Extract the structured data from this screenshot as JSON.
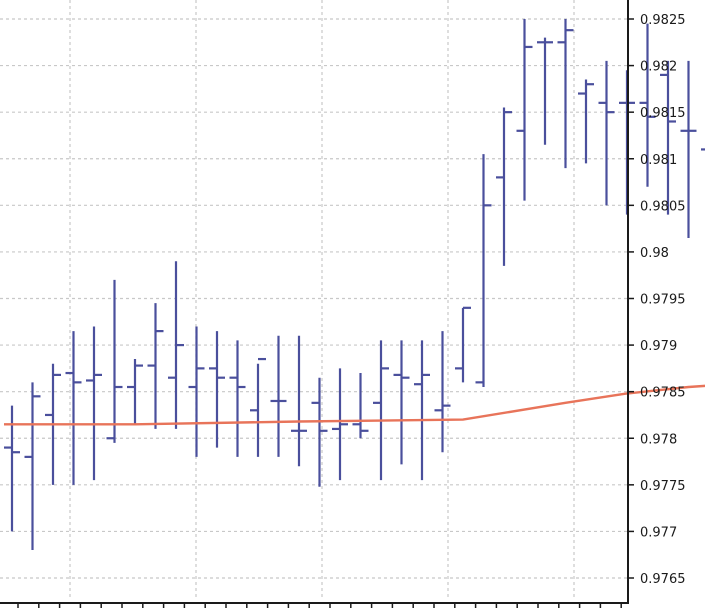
{
  "chart_data": {
    "type": "ohlc",
    "title": "",
    "xlabel": "",
    "ylabel": "",
    "ylim": [
      0.9762,
      0.9827
    ],
    "y_ticks": [
      "0.9825",
      "0.982",
      "0.9815",
      "0.981",
      "0.9805",
      "0.98",
      "0.9795",
      "0.979",
      "0.9785",
      "0.978",
      "0.9775",
      "0.977",
      "0.9765"
    ],
    "y_tick_values": [
      0.9825,
      0.982,
      0.9815,
      0.981,
      0.9805,
      0.98,
      0.9795,
      0.979,
      0.9785,
      0.978,
      0.9775,
      0.977,
      0.9765
    ],
    "grid": true,
    "axis_position": "right",
    "colors": {
      "bars": "#4a4f9c",
      "moving_average": "#e8745a",
      "grid": "#c8c8c8",
      "axis": "#1a1a1a"
    },
    "bars": [
      {
        "high": 0.97835,
        "low": 0.977,
        "open": 0.9779,
        "close": 0.97785
      },
      {
        "high": 0.9786,
        "low": 0.9768,
        "open": 0.9778,
        "close": 0.97845
      },
      {
        "high": 0.9788,
        "low": 0.9775,
        "open": 0.97825,
        "close": 0.97868
      },
      {
        "high": 0.97915,
        "low": 0.9775,
        "open": 0.9787,
        "close": 0.9786
      },
      {
        "high": 0.9792,
        "low": 0.97755,
        "open": 0.97862,
        "close": 0.97868
      },
      {
        "high": 0.9797,
        "low": 0.97795,
        "open": 0.978,
        "close": 0.97855
      },
      {
        "high": 0.97885,
        "low": 0.97815,
        "open": 0.97855,
        "close": 0.97878
      },
      {
        "high": 0.97945,
        "low": 0.9781,
        "open": 0.97878,
        "close": 0.97915
      },
      {
        "high": 0.9799,
        "low": 0.9781,
        "open": 0.97865,
        "close": 0.979
      },
      {
        "high": 0.9792,
        "low": 0.9778,
        "open": 0.97855,
        "close": 0.97875
      },
      {
        "high": 0.97915,
        "low": 0.9779,
        "open": 0.97875,
        "close": 0.97865
      },
      {
        "high": 0.97905,
        "low": 0.9778,
        "open": 0.97865,
        "close": 0.97855
      },
      {
        "high": 0.9788,
        "low": 0.9778,
        "open": 0.9783,
        "close": 0.97885
      },
      {
        "high": 0.9791,
        "low": 0.9778,
        "open": 0.9784,
        "close": 0.9784
      },
      {
        "high": 0.9791,
        "low": 0.9777,
        "open": 0.97808,
        "close": 0.97808
      },
      {
        "high": 0.97865,
        "low": 0.97748,
        "open": 0.97838,
        "close": 0.97808
      },
      {
        "high": 0.97875,
        "low": 0.97755,
        "open": 0.9781,
        "close": 0.97815
      },
      {
        "high": 0.9787,
        "low": 0.978,
        "open": 0.97815,
        "close": 0.97808
      },
      {
        "high": 0.97905,
        "low": 0.97755,
        "open": 0.97838,
        "close": 0.97875
      },
      {
        "high": 0.97905,
        "low": 0.97772,
        "open": 0.97868,
        "close": 0.97865
      },
      {
        "high": 0.97905,
        "low": 0.97755,
        "open": 0.97858,
        "close": 0.97868
      },
      {
        "high": 0.97915,
        "low": 0.97785,
        "open": 0.9783,
        "close": 0.97835
      },
      {
        "high": 0.9794,
        "low": 0.9786,
        "open": 0.97875,
        "close": 0.9794
      },
      {
        "high": 0.98105,
        "low": 0.97855,
        "open": 0.9786,
        "close": 0.9805
      },
      {
        "high": 0.98155,
        "low": 0.97985,
        "open": 0.9808,
        "close": 0.9815
      },
      {
        "high": 0.9825,
        "low": 0.98055,
        "open": 0.9813,
        "close": 0.9822
      },
      {
        "high": 0.9823,
        "low": 0.98115,
        "open": 0.98225,
        "close": 0.98225
      },
      {
        "high": 0.9825,
        "low": 0.9809,
        "open": 0.98225,
        "close": 0.98238
      },
      {
        "high": 0.98185,
        "low": 0.98095,
        "open": 0.9817,
        "close": 0.9818
      },
      {
        "high": 0.98205,
        "low": 0.9805,
        "open": 0.9816,
        "close": 0.9815
      },
      {
        "high": 0.98195,
        "low": 0.9804,
        "open": 0.9816,
        "close": 0.9816
      },
      {
        "high": 0.98245,
        "low": 0.9807,
        "open": 0.9816,
        "close": 0.98145
      },
      {
        "high": 0.98205,
        "low": 0.9804,
        "open": 0.9819,
        "close": 0.9814
      },
      {
        "high": 0.98205,
        "low": 0.98015,
        "open": 0.9813,
        "close": 0.9813
      },
      {
        "high": 0.98195,
        "low": 0.97778,
        "open": 0.9811,
        "close": 0.98028
      },
      {
        "high": 0.98055,
        "low": 0.97885,
        "open": 0.98038,
        "close": 0.9799
      }
    ],
    "moving_average": [
      [
        0,
        0.97815
      ],
      [
        6,
        0.97815
      ],
      [
        14,
        0.97818
      ],
      [
        22,
        0.9782
      ],
      [
        27,
        0.97838
      ],
      [
        30,
        0.97848
      ],
      [
        33,
        0.97855
      ],
      [
        35,
        0.97858
      ]
    ]
  }
}
